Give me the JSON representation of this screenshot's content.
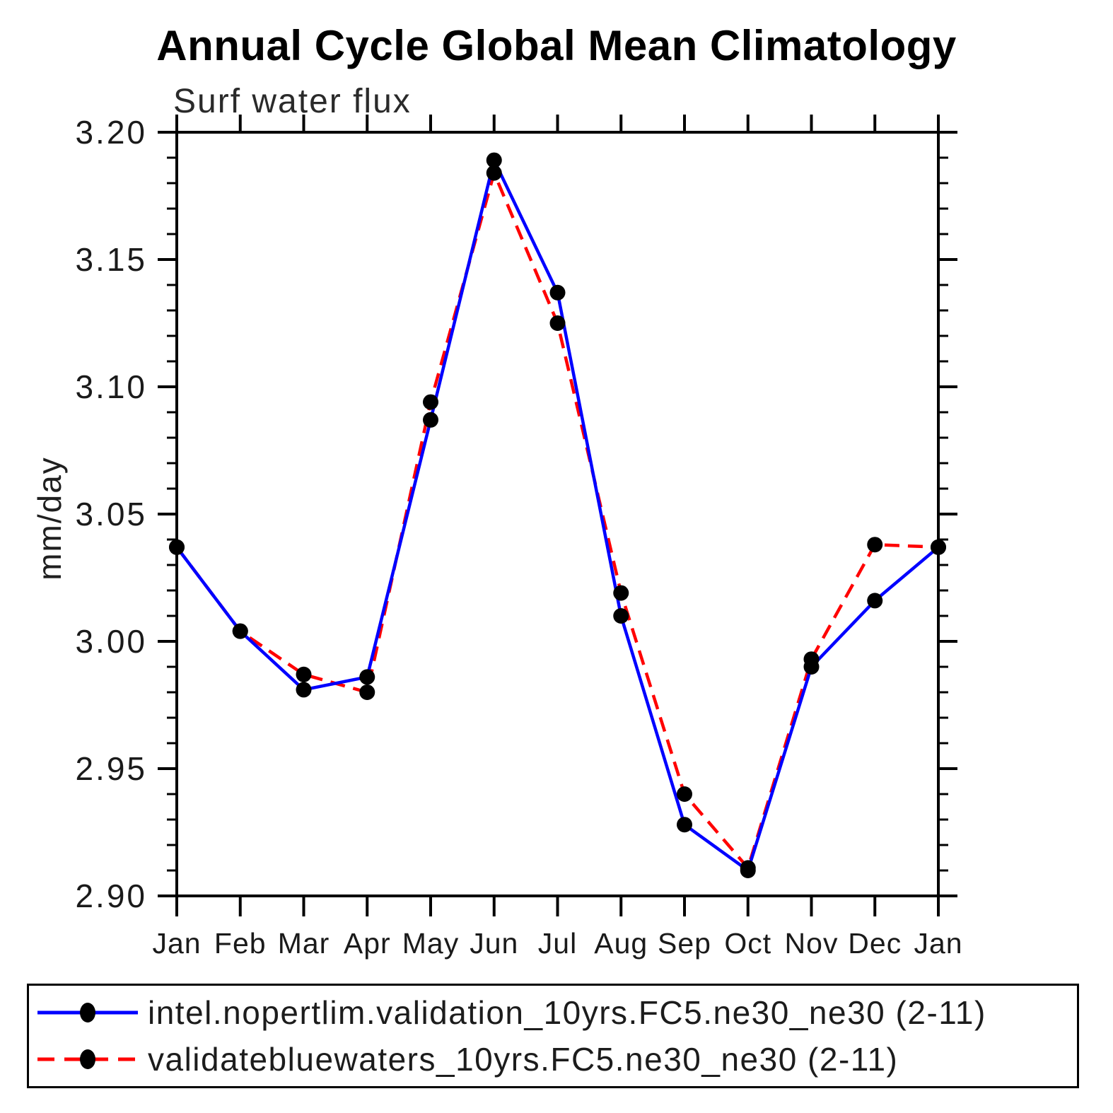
{
  "chart_data": {
    "type": "line",
    "title": "Annual Cycle Global Mean Climatology",
    "subtitle": "Surf water flux",
    "ylabel": "mm/day",
    "categories": [
      "Jan",
      "Feb",
      "Mar",
      "Apr",
      "May",
      "Jun",
      "Jul",
      "Aug",
      "Sep",
      "Oct",
      "Nov",
      "Dec",
      "Jan"
    ],
    "ylim": [
      2.9,
      3.2
    ],
    "ytick_interval_major": 0.05,
    "ytick_interval_minor": 0.01,
    "ytick_labels": [
      "2.90",
      "2.95",
      "3.00",
      "3.05",
      "3.10",
      "3.15",
      "3.20"
    ],
    "grid": false,
    "legend_position": "bottom",
    "axis_color": "#000000",
    "marker_shape": "filled-circle",
    "series": [
      {
        "name": "intel.nopertlim.validation_10yrs.FC5.ne30_ne30 (2-11)",
        "color": "#0000ff",
        "line_style": "solid",
        "marker_color": "#000000",
        "values": [
          3.037,
          3.004,
          2.981,
          2.986,
          3.087,
          3.189,
          3.137,
          3.01,
          2.928,
          2.91,
          2.99,
          3.016,
          3.037
        ]
      },
      {
        "name": "validatebluewaters_10yrs.FC5.ne30_ne30 (2-11)",
        "color": "#ff0000",
        "line_style": "dashed",
        "marker_color": "#000000",
        "values": [
          3.037,
          3.004,
          2.987,
          2.98,
          3.094,
          3.184,
          3.125,
          3.019,
          2.94,
          2.911,
          2.993,
          3.038,
          3.037
        ]
      }
    ]
  }
}
